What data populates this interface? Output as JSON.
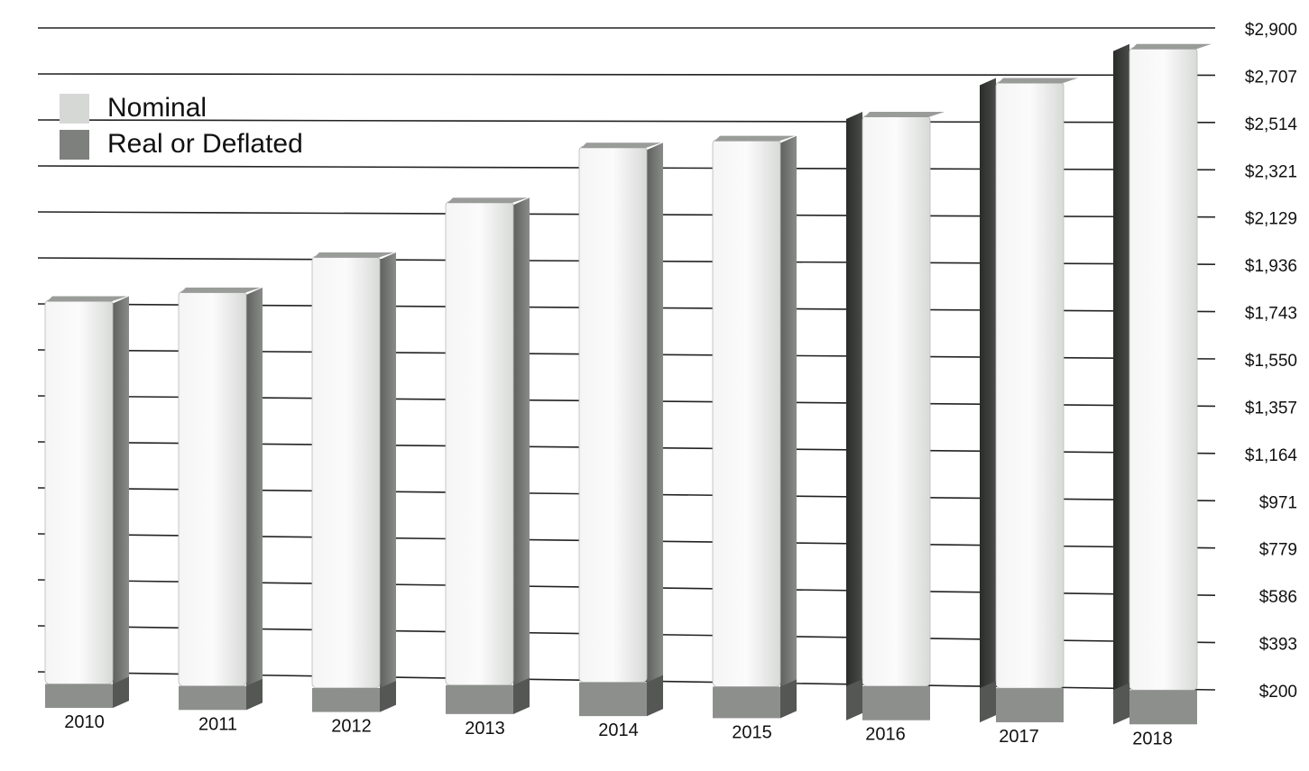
{
  "chart_data": {
    "type": "bar",
    "title": "",
    "xlabel": "",
    "ylabel": "",
    "categories": [
      "2010",
      "2011",
      "2012",
      "2013",
      "2014",
      "2015",
      "2016",
      "2017",
      "2018"
    ],
    "series": [
      {
        "name": "Nominal",
        "values": [
          1760,
          1800,
          1950,
          2180,
          2410,
          2440,
          2540,
          2680,
          2820
        ]
      },
      {
        "name": "Real or Deflated",
        "values": [
          300,
          300,
          300,
          320,
          340,
          330,
          340,
          340,
          340
        ]
      }
    ],
    "yticks": [
      "$200",
      "$393",
      "$586",
      "$779",
      "$971",
      "$1,164",
      "$1,357",
      "$1,550",
      "$1,743",
      "$1,936",
      "$2,129",
      "$2,321",
      "$2,514",
      "$2,707",
      "$2,900"
    ],
    "ylim": [
      200,
      2900
    ],
    "grid": true,
    "legend_position": "top-left",
    "colors": {
      "nominal": "#e4e6e4",
      "real": "#8d8f8d",
      "nominal_side": "#6f716f",
      "grid": "#222222"
    }
  },
  "legend": {
    "nominal": "Nominal",
    "real": "Real or Deflated"
  }
}
